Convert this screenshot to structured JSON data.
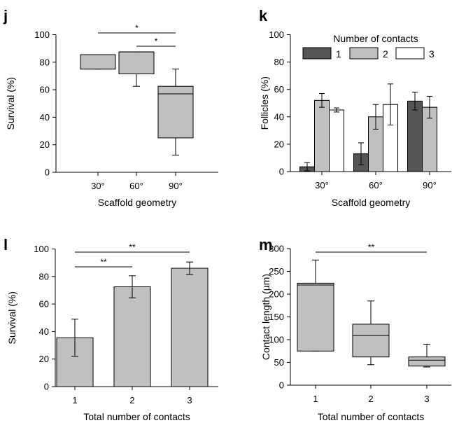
{
  "chart_data": [
    {
      "panel": "j",
      "type": "box",
      "xlabel": "Scaffold geometry",
      "ylabel": "Survival (%)",
      "ylim": [
        0,
        100
      ],
      "yticks": [
        0,
        20,
        40,
        60,
        80,
        100
      ],
      "categories": [
        "30°",
        "60°",
        "90°"
      ],
      "boxes": [
        {
          "min": 75,
          "q1": 75,
          "median": 75,
          "q3": 85.5,
          "max": 85.5
        },
        {
          "min": 62.5,
          "q1": 71.5,
          "median": 87.5,
          "q3": 87.5,
          "max": 87.5
        },
        {
          "min": 12.5,
          "q1": 25,
          "median": 57,
          "q3": 62.5,
          "max": 75
        }
      ],
      "significance": [
        {
          "from": 0,
          "to": 2,
          "label": "*"
        },
        {
          "from": 1,
          "to": 2,
          "label": "*"
        }
      ],
      "box_color": "#c0c0c0"
    },
    {
      "panel": "k",
      "type": "bar",
      "xlabel": "Scaffold geometry",
      "ylabel": "Follicles (%)",
      "ylim": [
        0,
        100
      ],
      "yticks": [
        0,
        20,
        40,
        60,
        80,
        100
      ],
      "categories": [
        "30°",
        "60°",
        "90°"
      ],
      "legend_title": "Number of contacts",
      "legend": "top",
      "series": [
        {
          "name": "1",
          "color": "#555555",
          "values": [
            3.5,
            13,
            51.5
          ],
          "errors": [
            3,
            8,
            6.5
          ]
        },
        {
          "name": "2",
          "color": "#c0c0c0",
          "values": [
            52,
            40,
            47
          ],
          "errors": [
            5,
            9,
            8
          ]
        },
        {
          "name": "3",
          "color": "#ffffff",
          "values": [
            45,
            49,
            null
          ],
          "errors": [
            1.5,
            15,
            null
          ]
        }
      ]
    },
    {
      "panel": "l",
      "type": "bar",
      "xlabel": "Total number of contacts",
      "ylabel": "Survival (%)",
      "ylim": [
        0,
        100
      ],
      "yticks": [
        0,
        20,
        40,
        60,
        80,
        100
      ],
      "categories": [
        "1",
        "2",
        "3"
      ],
      "values": [
        35.5,
        72.5,
        86
      ],
      "errors": [
        13.5,
        8,
        4.5
      ],
      "bar_color": "#c0c0c0",
      "significance": [
        {
          "from": 0,
          "to": 2,
          "label": "**"
        },
        {
          "from": 0,
          "to": 1,
          "label": "**"
        }
      ]
    },
    {
      "panel": "m",
      "type": "box",
      "xlabel": "Total number of contacts",
      "ylabel": "Contact length (µm)",
      "ylim": [
        0,
        300
      ],
      "yticks": [
        0,
        50,
        100,
        150,
        200,
        250,
        300
      ],
      "categories": [
        "1",
        "2",
        "3"
      ],
      "boxes": [
        {
          "min": 75,
          "q1": 75,
          "median": 220,
          "q3": 224,
          "max": 275
        },
        {
          "min": 45,
          "q1": 62,
          "median": 109,
          "q3": 134,
          "max": 185
        },
        {
          "min": 40,
          "q1": 42,
          "median": 55,
          "q3": 62,
          "max": 90
        }
      ],
      "significance": [
        {
          "from": 0,
          "to": 2,
          "label": "**"
        }
      ],
      "box_color": "#c0c0c0"
    }
  ]
}
